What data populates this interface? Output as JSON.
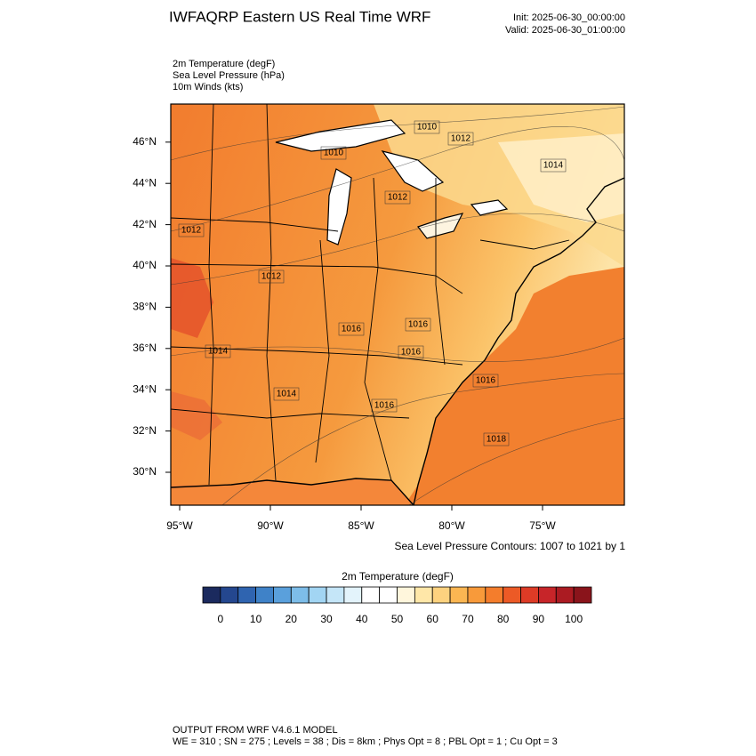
{
  "header": {
    "title": "IWFAQRP Eastern US Real Time WRF",
    "init": "Init: 2025-06-30_00:00:00",
    "valid": "Valid: 2025-06-30_01:00:00"
  },
  "fields": [
    "2m Temperature   (degF)",
    "Sea Level Pressure   (hPa)",
    "10m Winds   (kts)"
  ],
  "map": {
    "lat_labels": [
      "30°N",
      "32°N",
      "34°N",
      "36°N",
      "38°N",
      "40°N",
      "42°N",
      "44°N",
      "46°N"
    ],
    "lon_labels": [
      "95°W",
      "90°W",
      "85°W",
      "80°W",
      "75°W"
    ],
    "contour_labels": [
      "1010",
      "1012",
      "1010",
      "1014",
      "1012",
      "1012",
      "1012",
      "1014",
      "1014",
      "1016",
      "1016",
      "1016",
      "1016",
      "1016",
      "1018"
    ]
  },
  "contour_note": "Sea Level Pressure Contours: 1007 to 1021 by 1",
  "colorbar": {
    "title": "2m Temperature  (degF)",
    "ticks": [
      "0",
      "10",
      "20",
      "30",
      "40",
      "50",
      "60",
      "70",
      "80",
      "90",
      "100"
    ],
    "colors": [
      "#1b2a5e",
      "#24478f",
      "#2f64b0",
      "#3f82c8",
      "#5aa0dc",
      "#7dbde9",
      "#a2d5f3",
      "#c5e6f8",
      "#e3f3fb",
      "#ffffff",
      "#ffffff",
      "#fff6dc",
      "#ffe7a8",
      "#fdd27f",
      "#fbb652",
      "#f89a3a",
      "#f47d2c",
      "#ec5a26",
      "#dd3b26",
      "#c72529",
      "#ab1b22",
      "#8a141b"
    ]
  },
  "footer": {
    "line1": "OUTPUT FROM WRF V4.6.1 MODEL",
    "line2": "WE = 310 ; SN = 275 ; Levels = 38 ; Dis = 8km ; Phys Opt = 8 ; PBL Opt = 1 ; Cu Opt = 3"
  }
}
